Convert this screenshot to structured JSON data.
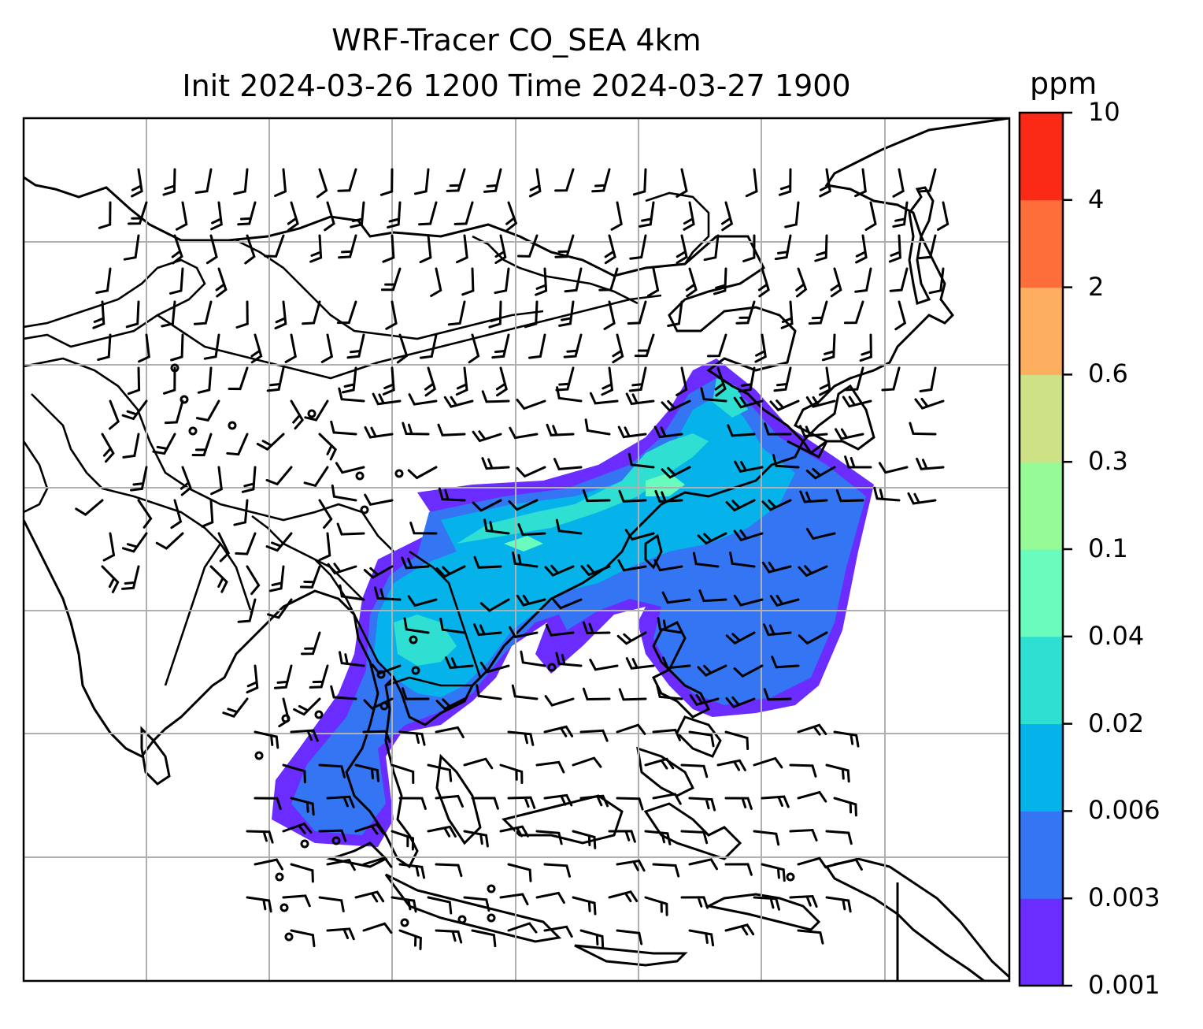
{
  "title": {
    "line1": "WRF-Tracer CO_SEA 4km",
    "line2": "Init 2024-03-26 1200 Time 2024-03-27 1900"
  },
  "colorbar": {
    "unit": "ppm",
    "ticks": [
      "10",
      "4",
      "2",
      "0.6",
      "0.3",
      "0.1",
      "0.04",
      "0.02",
      "0.006",
      "0.003",
      "0.001"
    ],
    "colors": [
      "#6a2cff",
      "#3375f2",
      "#05b3ea",
      "#2edfd2",
      "#69fcbc",
      "#96fb96",
      "#cfe187",
      "#fdaf5f",
      "#fd6e3b",
      "#fb2a16"
    ]
  },
  "map": {
    "gridlines": true,
    "features": [
      "coastlines",
      "country-borders",
      "wind-barbs",
      "tracer-concentration-fill"
    ]
  }
}
